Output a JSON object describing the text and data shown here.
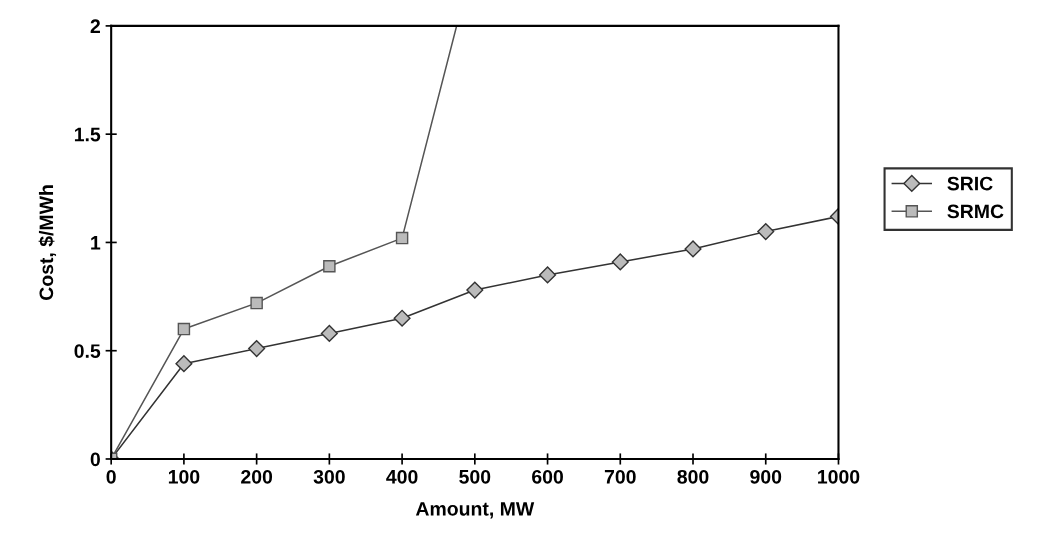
{
  "chart_data": {
    "type": "line",
    "xlabel": "Amount, MW",
    "ylabel": "Cost, $/MWh",
    "x": [
      0,
      100,
      200,
      300,
      400,
      500,
      600,
      700,
      800,
      900,
      1000
    ],
    "series": [
      {
        "name": "SRIC",
        "color": "#333333",
        "marker": "diamond",
        "values": [
          0,
          0.44,
          0.51,
          0.58,
          0.65,
          0.78,
          0.85,
          0.91,
          0.97,
          1.05,
          1.12
        ]
      },
      {
        "name": "SRMC",
        "color": "#555555",
        "marker": "square",
        "x": [
          0,
          100,
          200,
          300,
          400,
          475
        ],
        "values": [
          0,
          0.6,
          0.72,
          0.89,
          1.02,
          2
        ]
      }
    ],
    "xlim": [
      0,
      1000
    ],
    "xticks": [
      0,
      100,
      200,
      300,
      400,
      500,
      600,
      700,
      800,
      900,
      1000
    ],
    "ylim": [
      0,
      2
    ],
    "yticks": [
      0,
      0.5,
      1,
      1.5,
      2
    ],
    "grid": false,
    "legend": "right",
    "line_style": "solid"
  }
}
